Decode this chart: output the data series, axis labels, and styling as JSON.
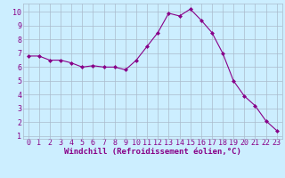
{
  "x": [
    0,
    1,
    2,
    3,
    4,
    5,
    6,
    7,
    8,
    9,
    10,
    11,
    12,
    13,
    14,
    15,
    16,
    17,
    18,
    19,
    20,
    21,
    22,
    23
  ],
  "y": [
    6.8,
    6.8,
    6.5,
    6.5,
    6.3,
    6.0,
    6.1,
    6.0,
    6.0,
    5.8,
    6.5,
    7.5,
    8.5,
    9.9,
    9.7,
    10.2,
    9.4,
    8.5,
    7.0,
    5.0,
    3.9,
    3.2,
    2.1,
    1.4
  ],
  "line_color": "#880088",
  "marker": "D",
  "marker_size": 2.0,
  "bg_color": "#cceeff",
  "grid_color": "#aabbcc",
  "xlabel": "Windchill (Refroidissement éolien,°C)",
  "xlim": [
    -0.5,
    23.5
  ],
  "ylim": [
    0.8,
    10.6
  ],
  "yticks": [
    1,
    2,
    3,
    4,
    5,
    6,
    7,
    8,
    9,
    10
  ],
  "xticks": [
    0,
    1,
    2,
    3,
    4,
    5,
    6,
    7,
    8,
    9,
    10,
    11,
    12,
    13,
    14,
    15,
    16,
    17,
    18,
    19,
    20,
    21,
    22,
    23
  ],
  "xlabel_fontsize": 6.5,
  "tick_fontsize": 6.0,
  "label_color": "#880088"
}
